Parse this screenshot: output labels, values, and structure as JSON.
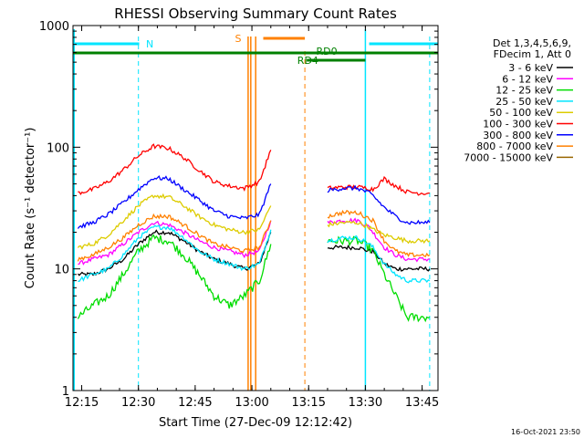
{
  "chart_data": {
    "type": "line",
    "title": "RHESSI Observing Summary Count Rates",
    "xlabel": "Start Time (27-Dec-09 12:12:42)",
    "ylabel": "Count Rate (s⁻¹ detector⁻¹)",
    "yscale": "log",
    "ylim": [
      1,
      1000
    ],
    "xlim": [
      "12:12",
      "13:49"
    ],
    "x_ticks": [
      "12:15",
      "12:30",
      "12:45",
      "13:00",
      "13:15",
      "13:30",
      "13:45"
    ],
    "y_ticks": [
      "1",
      "10",
      "100",
      "1000"
    ],
    "footer_date": "16-Oct-2021 23:50",
    "legend": {
      "placement": "top-right",
      "header_lines": [
        "Det 1,3,4,5,6,9,",
        "FDecim 1, Att 0"
      ]
    },
    "annotations": [
      {
        "label": "N",
        "color": "#00e5ff"
      },
      {
        "label": "S",
        "color": "#ff8000"
      },
      {
        "label": "RD0",
        "color": "#008000"
      },
      {
        "label": "RD4",
        "color": "#008000"
      }
    ],
    "time_axis": [
      "12:14",
      "12:18",
      "12:22",
      "12:26",
      "12:30",
      "12:34",
      "12:38",
      "12:42",
      "12:46",
      "12:50",
      "12:54",
      "12:58",
      "13:02",
      "13:05",
      "13:17",
      "13:20",
      "13:24",
      "13:28",
      "13:31",
      "13:32",
      "13:35",
      "13:38",
      "13:41",
      "13:44",
      "13:47"
    ],
    "series": [
      {
        "name": "3 - 6 keV",
        "color": "#000000",
        "values": [
          9,
          9,
          10,
          12,
          16,
          20,
          20,
          17,
          14,
          12,
          11,
          10,
          11,
          20,
          null,
          15,
          15,
          15,
          14,
          14,
          11,
          10,
          10,
          10,
          10
        ]
      },
      {
        "name": "6 - 12 keV",
        "color": "#ff00ff",
        "values": [
          11,
          12,
          13,
          16,
          20,
          24,
          23,
          20,
          17,
          15,
          14,
          13,
          14,
          25,
          null,
          24,
          25,
          25,
          22,
          20,
          15,
          13,
          12,
          12,
          12
        ]
      },
      {
        "name": "12 - 25 keV",
        "color": "#00dd00",
        "values": [
          4,
          5,
          6,
          9,
          14,
          18,
          17,
          13,
          9,
          6,
          5,
          6,
          8,
          16,
          null,
          17,
          17,
          17,
          15,
          14,
          9,
          6,
          4,
          4,
          4
        ]
      },
      {
        "name": "25 - 50 keV",
        "color": "#00e5ff",
        "values": [
          8,
          9,
          10,
          13,
          18,
          22,
          22,
          18,
          14,
          12,
          11,
          10,
          11,
          21,
          null,
          17,
          18,
          18,
          16,
          15,
          11,
          9,
          8,
          8,
          8
        ]
      },
      {
        "name": "50 - 100 keV",
        "color": "#ddcc00",
        "values": [
          15,
          16,
          19,
          25,
          33,
          40,
          39,
          33,
          27,
          23,
          21,
          20,
          21,
          33,
          null,
          23,
          24,
          24,
          22,
          21,
          19,
          18,
          17,
          17,
          17
        ]
      },
      {
        "name": "100 - 300 keV",
        "color": "#ff0000",
        "values": [
          42,
          45,
          52,
          65,
          85,
          102,
          98,
          82,
          65,
          52,
          48,
          46,
          52,
          95,
          null,
          46,
          47,
          47,
          46,
          45,
          55,
          48,
          43,
          42,
          42
        ]
      },
      {
        "name": "300 - 800 keV",
        "color": "#0000ff",
        "values": [
          22,
          24,
          28,
          35,
          45,
          56,
          55,
          45,
          37,
          30,
          27,
          26,
          28,
          50,
          null,
          44,
          46,
          46,
          42,
          40,
          32,
          27,
          24,
          24,
          24
        ]
      },
      {
        "name": "800 - 7000 keV",
        "color": "#ff8000",
        "values": [
          12,
          13,
          15,
          18,
          23,
          27,
          27,
          23,
          19,
          16,
          15,
          14,
          15,
          25,
          null,
          27,
          29,
          29,
          26,
          25,
          17,
          14,
          13,
          13,
          13
        ]
      },
      {
        "name": "7000 - 15000 keV",
        "color": "#996600",
        "values": [
          null,
          null,
          null,
          null,
          null,
          null,
          null,
          null,
          null,
          null,
          null,
          null,
          null,
          null,
          null,
          null,
          null,
          null,
          null,
          null,
          null,
          null,
          null,
          null,
          null
        ]
      }
    ]
  }
}
